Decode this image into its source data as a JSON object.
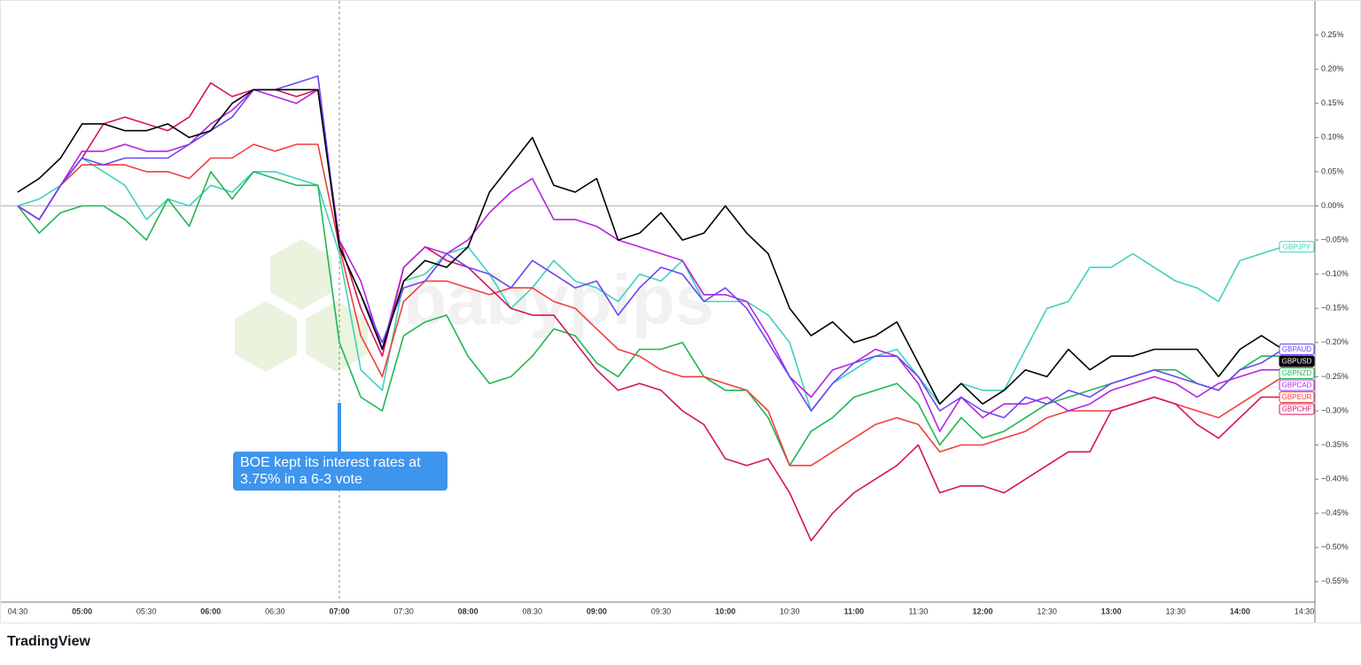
{
  "chart_data": {
    "type": "line",
    "annotation": "BOE kept its interest rates at 3.75% in a 6-3 vote",
    "watermark": "babypips",
    "brand": "TradingView",
    "x": [
      "04:30",
      null,
      null,
      "05:00",
      null,
      null,
      "05:30",
      null,
      null,
      "06:00",
      null,
      null,
      "06:30",
      null,
      null,
      "07:00",
      null,
      null,
      "07:30",
      null,
      null,
      "08:00",
      null,
      null,
      "08:30",
      null,
      null,
      "09:00",
      null,
      null,
      "09:30",
      null,
      null,
      "10:00",
      null,
      null,
      "10:30",
      null,
      null,
      "11:00",
      null,
      null,
      "11:30",
      null,
      null,
      "12:00",
      null,
      null,
      "12:30",
      null,
      null,
      "13:00",
      null,
      null,
      "13:30",
      null,
      null,
      "14:00",
      null,
      null,
      "14:30"
    ],
    "ylim": [
      -0.58,
      0.3
    ],
    "yticks": [
      {
        "value": 0.25,
        "label": "0.25%"
      },
      {
        "value": 0.2,
        "label": "0.20%"
      },
      {
        "value": 0.15,
        "label": "0.15%"
      },
      {
        "value": 0.1,
        "label": "0.10%"
      },
      {
        "value": 0.05,
        "label": "0.05%"
      },
      {
        "value": 0,
        "label": "0.00%"
      },
      {
        "value": -0.05,
        "label": "−0.05%"
      },
      {
        "value": -0.1,
        "label": "−0.10%"
      },
      {
        "value": -0.15,
        "label": "−0.15%"
      },
      {
        "value": -0.2,
        "label": "−0.20%"
      },
      {
        "value": -0.25,
        "label": "−0.25%"
      },
      {
        "value": -0.3,
        "label": "−0.30%"
      },
      {
        "value": -0.35,
        "label": "−0.35%"
      },
      {
        "value": -0.4,
        "label": "−0.40%"
      },
      {
        "value": -0.45,
        "label": "−0.45%"
      },
      {
        "value": -0.5,
        "label": "−0.50%"
      },
      {
        "value": -0.55,
        "label": "−0.55%"
      }
    ],
    "grid": false,
    "series": [
      {
        "name": "GBPJPY",
        "color": "#3fd1bd",
        "values": [
          0.0,
          0.01,
          0.03,
          0.07,
          0.05,
          0.03,
          -0.02,
          0.01,
          0.0,
          0.03,
          0.02,
          0.05,
          0.05,
          0.04,
          0.03,
          -0.07,
          -0.24,
          -0.27,
          -0.11,
          -0.1,
          -0.07,
          -0.06,
          -0.1,
          -0.15,
          -0.12,
          -0.08,
          -0.11,
          -0.12,
          -0.14,
          -0.1,
          -0.11,
          -0.08,
          -0.14,
          -0.14,
          -0.14,
          -0.16,
          -0.2,
          -0.3,
          -0.26,
          -0.24,
          -0.22,
          -0.21,
          -0.25,
          -0.29,
          -0.26,
          -0.27,
          -0.27,
          -0.21,
          -0.15,
          -0.14,
          -0.09,
          -0.09,
          -0.07,
          -0.09,
          -0.11,
          -0.12,
          -0.14,
          -0.08,
          -0.07,
          -0.06,
          null
        ]
      },
      {
        "name": "GBPNZD",
        "color": "#1fb751",
        "values": [
          0.0,
          -0.04,
          -0.01,
          0.0,
          0.0,
          -0.02,
          -0.05,
          0.01,
          -0.03,
          0.05,
          0.01,
          0.05,
          0.04,
          0.03,
          0.03,
          -0.2,
          -0.28,
          -0.3,
          -0.19,
          -0.17,
          -0.16,
          -0.22,
          -0.26,
          -0.25,
          -0.22,
          -0.18,
          -0.19,
          -0.23,
          -0.25,
          -0.21,
          -0.21,
          -0.2,
          -0.25,
          -0.27,
          -0.27,
          -0.31,
          -0.38,
          -0.33,
          -0.31,
          -0.28,
          -0.27,
          -0.26,
          -0.29,
          -0.35,
          -0.31,
          -0.34,
          -0.33,
          -0.31,
          -0.29,
          -0.28,
          -0.27,
          -0.26,
          -0.25,
          -0.24,
          -0.24,
          -0.26,
          -0.27,
          -0.24,
          -0.22,
          -0.22,
          null
        ]
      },
      {
        "name": "GBPEUR",
        "color": "#f23e3e",
        "values": [
          0.0,
          -0.02,
          0.03,
          0.06,
          0.06,
          0.06,
          0.05,
          0.05,
          0.04,
          0.07,
          0.07,
          0.09,
          0.08,
          0.09,
          0.09,
          -0.06,
          -0.19,
          -0.25,
          -0.14,
          -0.11,
          -0.11,
          -0.12,
          -0.13,
          -0.12,
          -0.12,
          -0.14,
          -0.15,
          -0.18,
          -0.21,
          -0.22,
          -0.24,
          -0.25,
          -0.25,
          -0.26,
          -0.27,
          -0.3,
          -0.38,
          -0.38,
          -0.36,
          -0.34,
          -0.32,
          -0.31,
          -0.32,
          -0.36,
          -0.35,
          -0.35,
          -0.34,
          -0.33,
          -0.31,
          -0.3,
          -0.3,
          -0.3,
          -0.29,
          -0.28,
          -0.29,
          -0.3,
          -0.31,
          -0.29,
          -0.27,
          -0.25,
          null
        ]
      },
      {
        "name": "GBPCHF",
        "color": "#d4145a",
        "values": [
          0.0,
          -0.02,
          0.03,
          0.07,
          0.12,
          0.13,
          0.12,
          0.11,
          0.13,
          0.18,
          0.16,
          0.17,
          0.17,
          0.16,
          0.17,
          -0.05,
          -0.15,
          -0.22,
          -0.09,
          -0.06,
          -0.08,
          -0.09,
          -0.12,
          -0.15,
          -0.16,
          -0.16,
          -0.2,
          -0.24,
          -0.27,
          -0.26,
          -0.27,
          -0.3,
          -0.32,
          -0.37,
          -0.38,
          -0.37,
          -0.42,
          -0.49,
          -0.45,
          -0.42,
          -0.4,
          -0.38,
          -0.35,
          -0.42,
          -0.41,
          -0.41,
          -0.42,
          -0.4,
          -0.38,
          -0.36,
          -0.36,
          -0.3,
          -0.29,
          -0.28,
          -0.29,
          -0.32,
          -0.34,
          -0.31,
          -0.28,
          -0.28,
          null
        ]
      },
      {
        "name": "GBPCAD",
        "color": "#b623e0",
        "values": [
          0.0,
          -0.02,
          0.03,
          0.08,
          0.08,
          0.09,
          0.08,
          0.08,
          0.09,
          0.12,
          0.14,
          0.17,
          0.16,
          0.15,
          0.17,
          -0.05,
          -0.11,
          -0.21,
          -0.09,
          -0.06,
          -0.07,
          -0.05,
          -0.01,
          0.02,
          0.04,
          -0.02,
          -0.02,
          -0.03,
          -0.05,
          -0.06,
          -0.07,
          -0.08,
          -0.13,
          -0.13,
          -0.14,
          -0.19,
          -0.25,
          -0.28,
          -0.24,
          -0.23,
          -0.21,
          -0.22,
          -0.26,
          -0.33,
          -0.28,
          -0.31,
          -0.29,
          -0.29,
          -0.28,
          -0.3,
          -0.29,
          -0.27,
          -0.26,
          -0.25,
          -0.26,
          -0.28,
          -0.26,
          -0.25,
          -0.24,
          -0.24,
          null
        ]
      },
      {
        "name": "GBPAUD",
        "color": "#6c44f5",
        "values": [
          0.0,
          -0.02,
          0.03,
          0.07,
          0.06,
          0.07,
          0.07,
          0.07,
          0.09,
          0.11,
          0.13,
          0.17,
          0.17,
          0.18,
          0.19,
          -0.06,
          -0.13,
          -0.2,
          -0.12,
          -0.11,
          -0.07,
          -0.09,
          -0.1,
          -0.12,
          -0.08,
          -0.1,
          -0.12,
          -0.11,
          -0.16,
          -0.12,
          -0.09,
          -0.1,
          -0.14,
          -0.12,
          -0.15,
          -0.2,
          -0.25,
          -0.3,
          -0.26,
          -0.23,
          -0.22,
          -0.22,
          -0.25,
          -0.3,
          -0.28,
          -0.3,
          -0.31,
          -0.28,
          -0.29,
          -0.27,
          -0.28,
          -0.26,
          -0.25,
          -0.24,
          -0.25,
          -0.26,
          -0.27,
          -0.24,
          -0.23,
          -0.21,
          null
        ]
      },
      {
        "name": "GBPUSD",
        "color": "#000000",
        "values": [
          0.02,
          0.04,
          0.07,
          0.12,
          0.12,
          0.11,
          0.11,
          0.12,
          0.1,
          0.11,
          0.15,
          0.17,
          0.17,
          0.17,
          0.17,
          -0.06,
          -0.13,
          -0.21,
          -0.11,
          -0.08,
          -0.09,
          -0.06,
          0.02,
          0.06,
          0.1,
          0.03,
          0.02,
          0.04,
          -0.05,
          -0.04,
          -0.01,
          -0.05,
          -0.04,
          0.0,
          -0.04,
          -0.07,
          -0.15,
          -0.19,
          -0.17,
          -0.2,
          -0.19,
          -0.17,
          -0.23,
          -0.29,
          -0.26,
          -0.29,
          -0.27,
          -0.24,
          -0.25,
          -0.21,
          -0.24,
          -0.22,
          -0.22,
          -0.21,
          -0.21,
          -0.21,
          -0.25,
          -0.21,
          -0.19,
          -0.21,
          null
        ]
      }
    ]
  }
}
